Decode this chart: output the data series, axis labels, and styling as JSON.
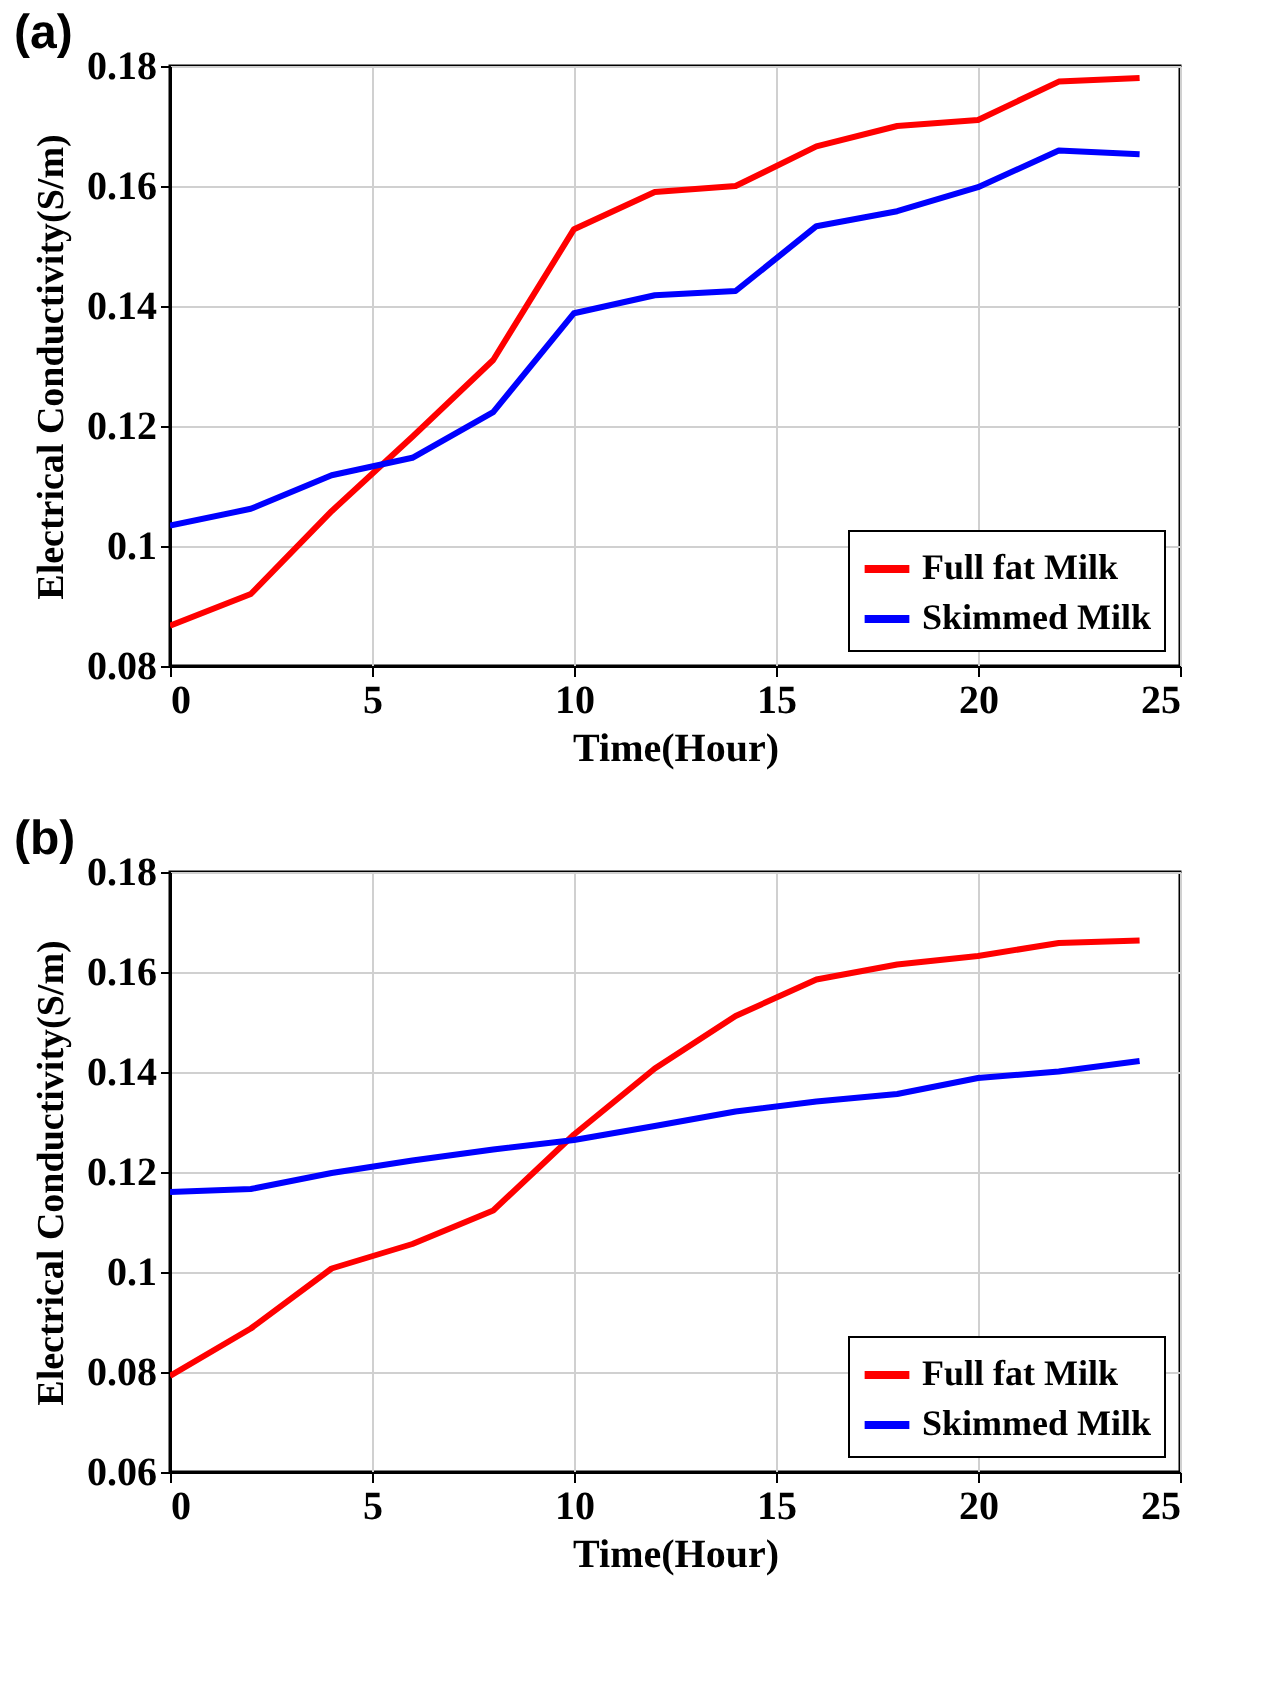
{
  "chart_data": [
    {
      "type": "line",
      "annotations": [
        "(a)"
      ],
      "xlabel": "Time(Hour)",
      "ylabel": "Electrical Conductivity(S/m)",
      "x": [
        0,
        2,
        4,
        6,
        8,
        10,
        12,
        14,
        16,
        18,
        20,
        22,
        24
      ],
      "xlim": [
        0,
        25
      ],
      "xticks": [
        0,
        5,
        10,
        15,
        20,
        25
      ],
      "ylim": [
        0.08,
        0.18
      ],
      "yticks": [
        0.08,
        0.1,
        0.12,
        0.14,
        0.16,
        0.18
      ],
      "grid": true,
      "legend": "bottom right",
      "series": [
        {
          "name": "Full fat Milk",
          "color": "#ff0000",
          "values": [
            0.0867,
            0.092,
            0.1058,
            0.1182,
            0.131,
            0.1528,
            0.159,
            0.16,
            0.1666,
            0.17,
            0.171,
            0.1774,
            0.178
          ]
        },
        {
          "name": "Skimmed Milk",
          "color": "#0000ff",
          "values": [
            0.1034,
            0.1062,
            0.1118,
            0.1147,
            0.1223,
            0.1388,
            0.1418,
            0.1425,
            0.1533,
            0.1558,
            0.1598,
            0.1659,
            0.1653
          ]
        }
      ]
    },
    {
      "type": "line",
      "annotations": [
        "(b)"
      ],
      "xlabel": "Time(Hour)",
      "ylabel": "Electrical Conductivity(S/m)",
      "x": [
        0,
        2,
        4,
        6,
        8,
        10,
        12,
        14,
        16,
        18,
        20,
        22,
        24
      ],
      "xlim": [
        0,
        25
      ],
      "xticks": [
        0,
        5,
        10,
        15,
        20,
        25
      ],
      "ylim": [
        0.06,
        0.18
      ],
      "yticks": [
        0.06,
        0.08,
        0.1,
        0.12,
        0.14,
        0.16,
        0.18
      ],
      "grid": true,
      "legend": "bottom right",
      "series": [
        {
          "name": "Full fat Milk",
          "color": "#ff0000",
          "values": [
            0.0792,
            0.0887,
            0.1007,
            0.1056,
            0.1123,
            0.1275,
            0.1407,
            0.1512,
            0.1585,
            0.1615,
            0.1632,
            0.1658,
            0.1663
          ]
        },
        {
          "name": "Skimmed Milk",
          "color": "#0000ff",
          "values": [
            0.116,
            0.1166,
            0.1198,
            0.1223,
            0.1245,
            0.1264,
            0.1292,
            0.1321,
            0.1341,
            0.1356,
            0.1388,
            0.1401,
            0.1422
          ]
        }
      ]
    }
  ]
}
